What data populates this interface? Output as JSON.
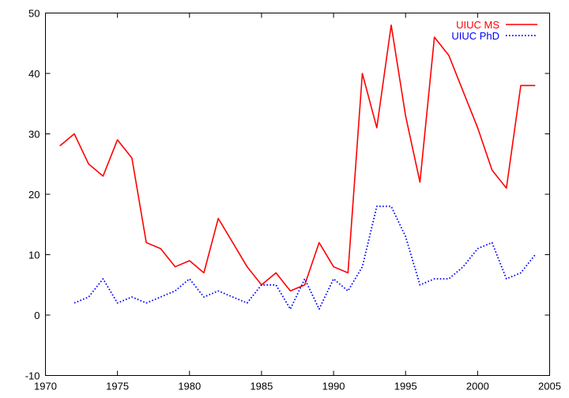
{
  "chart_data": {
    "type": "line",
    "title": "",
    "xlabel": "",
    "ylabel": "",
    "xlim": [
      1970,
      2005
    ],
    "ylim": [
      -10,
      50
    ],
    "xticks": [
      1970,
      1975,
      1980,
      1985,
      1990,
      1995,
      2000,
      2005
    ],
    "yticks": [
      -10,
      0,
      10,
      20,
      30,
      40,
      50
    ],
    "xtick_labels": [
      "1970",
      "1975",
      "1980",
      "1985",
      "1990",
      "1995",
      "2000",
      "2005"
    ],
    "ytick_labels": [
      "-10",
      "0",
      "10",
      "20",
      "30",
      "40",
      "50"
    ],
    "grid": false,
    "legend_position": "top-right",
    "series": [
      {
        "name": "UIUC MS",
        "color": "#ff0000",
        "dash": "solid",
        "x": [
          1971,
          1972,
          1973,
          1974,
          1975,
          1976,
          1977,
          1978,
          1979,
          1980,
          1981,
          1982,
          1983,
          1984,
          1985,
          1986,
          1987,
          1988,
          1989,
          1990,
          1991,
          1992,
          1993,
          1994,
          1995,
          1996,
          1997,
          1998,
          1999,
          2000,
          2001,
          2002,
          2003,
          2004
        ],
        "values": [
          28,
          30,
          25,
          23,
          29,
          26,
          12,
          11,
          8,
          9,
          7,
          16,
          12,
          8,
          5,
          7,
          4,
          5,
          12,
          8,
          7,
          40,
          31,
          48,
          33,
          22,
          46,
          43,
          37,
          31,
          24,
          21,
          38,
          38
        ]
      },
      {
        "name": "UIUC PhD",
        "color": "#0000ff",
        "dash": "dotted",
        "x": [
          1972,
          1973,
          1974,
          1975,
          1976,
          1977,
          1978,
          1979,
          1980,
          1981,
          1982,
          1983,
          1984,
          1985,
          1986,
          1987,
          1988,
          1989,
          1990,
          1991,
          1992,
          1993,
          1994,
          1995,
          1996,
          1997,
          1998,
          1999,
          2000,
          2001,
          2002,
          2003,
          2004
        ],
        "values": [
          2,
          3,
          6,
          2,
          3,
          2,
          3,
          4,
          6,
          3,
          4,
          3,
          2,
          5,
          5,
          1,
          6,
          1,
          6,
          4,
          8,
          18,
          18,
          13,
          5,
          6,
          6,
          8,
          11,
          12,
          6,
          7,
          10
        ]
      }
    ]
  }
}
